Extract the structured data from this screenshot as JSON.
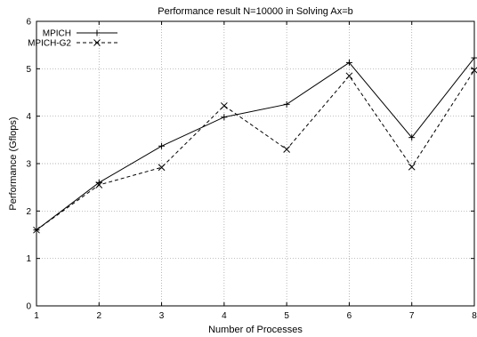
{
  "chart_data": {
    "type": "line",
    "title": "Performance result N=10000 in Solving Ax=b",
    "xlabel": "Number of Processes",
    "ylabel": "Performance (Gflops)",
    "x": [
      1,
      2,
      3,
      4,
      5,
      6,
      7,
      8
    ],
    "xlim": [
      1,
      8
    ],
    "ylim": [
      0,
      6
    ],
    "xticks": [
      1,
      2,
      3,
      4,
      5,
      6,
      7,
      8
    ],
    "yticks": [
      0,
      1,
      2,
      3,
      4,
      5,
      6
    ],
    "grid": true,
    "legend_position": "top-left",
    "series": [
      {
        "name": "MPICH",
        "marker": "plus",
        "dash": "solid",
        "color": "#000000",
        "values": [
          1.6,
          2.6,
          3.37,
          3.98,
          4.25,
          5.13,
          3.55,
          5.23
        ]
      },
      {
        "name": "MPICH-G2",
        "marker": "cross",
        "dash": "dashed",
        "color": "#000000",
        "values": [
          1.6,
          2.55,
          2.92,
          4.22,
          3.3,
          4.85,
          2.93,
          4.97
        ]
      }
    ]
  }
}
